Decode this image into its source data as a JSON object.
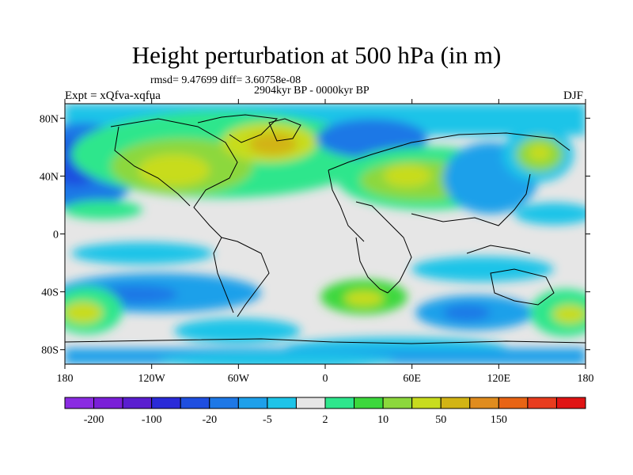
{
  "header": {
    "title": "Height perturbation at 500 hPa (in m)",
    "stats": "rmsd= 9.47699 diff= 3.60758e-08",
    "period": "2904kyr BP - 0000kyr BP",
    "expt": "Expt = xQfva-xqfua",
    "season": "DJF"
  },
  "map": {
    "lat_range": [
      -90,
      90
    ],
    "lon_range": [
      -180,
      180
    ],
    "lat_ticks": [
      {
        "value": 80,
        "label": "80N"
      },
      {
        "value": 40,
        "label": "40N"
      },
      {
        "value": 0,
        "label": "0"
      },
      {
        "value": -40,
        "label": "40S"
      },
      {
        "value": -80,
        "label": "80S"
      }
    ],
    "lon_ticks": [
      {
        "value": -180,
        "label": "180"
      },
      {
        "value": -120,
        "label": "120W"
      },
      {
        "value": -60,
        "label": "60W"
      },
      {
        "value": 0,
        "label": "0"
      },
      {
        "value": 60,
        "label": "60E"
      },
      {
        "value": 120,
        "label": "120E"
      },
      {
        "value": 180,
        "label": "180"
      }
    ]
  },
  "colorbar": {
    "colors": [
      "#8a2be2",
      "#7a1fd8",
      "#5a1ecf",
      "#2a2ad8",
      "#1f4fe0",
      "#1e78e6",
      "#1ea0ea",
      "#1ec4e8",
      "#e6e6e6",
      "#2ee68c",
      "#3cd83c",
      "#8cd83c",
      "#c8dc1e",
      "#d2b414",
      "#e08c1e",
      "#e86414",
      "#e83c1e",
      "#e01414"
    ],
    "labels": [
      {
        "after_box": 1,
        "text": "-200"
      },
      {
        "after_box": 3,
        "text": "-100"
      },
      {
        "after_box": 5,
        "text": "-20"
      },
      {
        "after_box": 7,
        "text": "-5"
      },
      {
        "after_box": 9,
        "text": "2"
      },
      {
        "after_box": 11,
        "text": "10"
      },
      {
        "after_box": 13,
        "text": "50"
      },
      {
        "after_box": 15,
        "text": "150"
      }
    ]
  }
}
